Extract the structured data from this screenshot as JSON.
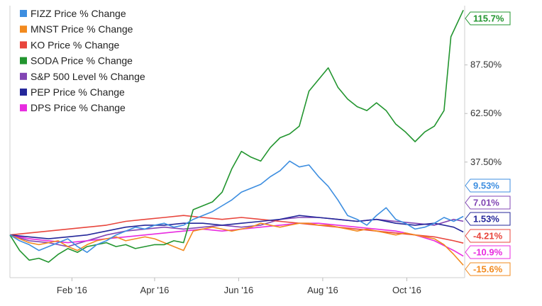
{
  "chart_data": {
    "type": "line",
    "xlim": [
      "2016-01-01",
      "2016-11-26"
    ],
    "ylim": [
      -22,
      118
    ],
    "grid": "off",
    "legend_placement": "top-left",
    "x_ticks": [
      {
        "date": "2016-02-15",
        "label": "Feb '16"
      },
      {
        "date": "2016-04-15",
        "label": "Apr '16"
      },
      {
        "date": "2016-06-15",
        "label": "Jun '16"
      },
      {
        "date": "2016-08-15",
        "label": "Aug '16"
      },
      {
        "date": "2016-10-15",
        "label": "Oct '16"
      }
    ],
    "y_ticks": [
      {
        "value": 87.5,
        "label": "87.50%"
      },
      {
        "value": 62.5,
        "label": "62.50%"
      },
      {
        "value": 37.5,
        "label": "37.50%"
      }
    ],
    "series": [
      {
        "name": "FIZZ Price % Change",
        "color": "#3d8ee0",
        "end_label": "9.53%",
        "end_value": 9.53,
        "points": [
          [
            "2016-01-01",
            0
          ],
          [
            "2016-01-08",
            -3
          ],
          [
            "2016-01-15",
            -5
          ],
          [
            "2016-01-22",
            -8
          ],
          [
            "2016-01-29",
            -6
          ],
          [
            "2016-02-05",
            -4
          ],
          [
            "2016-02-12",
            -2
          ],
          [
            "2016-02-19",
            -6
          ],
          [
            "2016-02-26",
            -9
          ],
          [
            "2016-03-04",
            -5
          ],
          [
            "2016-03-11",
            -3
          ],
          [
            "2016-03-18",
            0
          ],
          [
            "2016-03-25",
            2
          ],
          [
            "2016-04-01",
            4
          ],
          [
            "2016-04-08",
            3
          ],
          [
            "2016-04-15",
            5
          ],
          [
            "2016-04-22",
            6
          ],
          [
            "2016-04-29",
            4
          ],
          [
            "2016-05-06",
            5
          ],
          [
            "2016-05-13",
            8
          ],
          [
            "2016-05-20",
            10
          ],
          [
            "2016-05-27",
            12
          ],
          [
            "2016-06-03",
            15
          ],
          [
            "2016-06-10",
            18
          ],
          [
            "2016-06-17",
            22
          ],
          [
            "2016-06-24",
            24
          ],
          [
            "2016-07-01",
            26
          ],
          [
            "2016-07-08",
            30
          ],
          [
            "2016-07-15",
            33
          ],
          [
            "2016-07-22",
            38
          ],
          [
            "2016-07-29",
            35
          ],
          [
            "2016-08-05",
            36
          ],
          [
            "2016-08-12",
            30
          ],
          [
            "2016-08-19",
            25
          ],
          [
            "2016-08-26",
            18
          ],
          [
            "2016-09-02",
            10
          ],
          [
            "2016-09-09",
            8
          ],
          [
            "2016-09-16",
            5
          ],
          [
            "2016-09-23",
            10
          ],
          [
            "2016-09-30",
            14
          ],
          [
            "2016-10-07",
            8
          ],
          [
            "2016-10-14",
            6
          ],
          [
            "2016-10-21",
            3
          ],
          [
            "2016-10-28",
            4
          ],
          [
            "2016-11-04",
            6
          ],
          [
            "2016-11-11",
            9
          ],
          [
            "2016-11-18",
            7
          ],
          [
            "2016-11-25",
            9.53
          ]
        ]
      },
      {
        "name": "MNST Price % Change",
        "color": "#f28a1e",
        "end_label": "-15.6%",
        "end_value": -15.6,
        "points": [
          [
            "2016-01-01",
            0
          ],
          [
            "2016-01-08",
            -2
          ],
          [
            "2016-01-15",
            -4
          ],
          [
            "2016-01-22",
            -5
          ],
          [
            "2016-01-29",
            -4
          ],
          [
            "2016-02-05",
            -3
          ],
          [
            "2016-02-12",
            -6
          ],
          [
            "2016-02-19",
            -8
          ],
          [
            "2016-02-26",
            -5
          ],
          [
            "2016-03-04",
            -3
          ],
          [
            "2016-03-11",
            -2
          ],
          [
            "2016-03-18",
            -1
          ],
          [
            "2016-03-25",
            -3
          ],
          [
            "2016-04-01",
            -2
          ],
          [
            "2016-04-08",
            -1
          ],
          [
            "2016-04-15",
            -2
          ],
          [
            "2016-04-22",
            -4
          ],
          [
            "2016-04-29",
            -6
          ],
          [
            "2016-05-06",
            -8
          ],
          [
            "2016-05-13",
            2
          ],
          [
            "2016-05-20",
            3
          ],
          [
            "2016-05-27",
            4
          ],
          [
            "2016-06-03",
            3
          ],
          [
            "2016-06-10",
            2
          ],
          [
            "2016-06-17",
            3
          ],
          [
            "2016-06-24",
            4
          ],
          [
            "2016-07-01",
            6
          ],
          [
            "2016-07-08",
            5
          ],
          [
            "2016-07-15",
            4
          ],
          [
            "2016-07-22",
            5
          ],
          [
            "2016-07-29",
            6
          ],
          [
            "2016-08-05",
            6
          ],
          [
            "2016-08-12",
            5
          ],
          [
            "2016-08-19",
            5
          ],
          [
            "2016-08-26",
            4
          ],
          [
            "2016-09-02",
            3
          ],
          [
            "2016-09-09",
            2
          ],
          [
            "2016-09-16",
            3
          ],
          [
            "2016-09-23",
            2
          ],
          [
            "2016-09-30",
            1
          ],
          [
            "2016-10-07",
            0
          ],
          [
            "2016-10-14",
            1
          ],
          [
            "2016-10-21",
            0
          ],
          [
            "2016-10-28",
            -1
          ],
          [
            "2016-11-04",
            -2
          ],
          [
            "2016-11-11",
            -5
          ],
          [
            "2016-11-18",
            -10
          ],
          [
            "2016-11-25",
            -15.6
          ]
        ]
      },
      {
        "name": "KO Price % Change",
        "color": "#e8453c",
        "end_label": "-4.21%",
        "end_value": -4.21,
        "points": [
          [
            "2016-01-01",
            0
          ],
          [
            "2016-01-15",
            1
          ],
          [
            "2016-01-29",
            2
          ],
          [
            "2016-02-12",
            3
          ],
          [
            "2016-02-26",
            4
          ],
          [
            "2016-03-11",
            5
          ],
          [
            "2016-03-25",
            7
          ],
          [
            "2016-04-08",
            8
          ],
          [
            "2016-04-22",
            9
          ],
          [
            "2016-05-06",
            10
          ],
          [
            "2016-05-20",
            9
          ],
          [
            "2016-06-03",
            8
          ],
          [
            "2016-06-17",
            9
          ],
          [
            "2016-07-01",
            8
          ],
          [
            "2016-07-15",
            7
          ],
          [
            "2016-07-29",
            6
          ],
          [
            "2016-08-12",
            5
          ],
          [
            "2016-08-26",
            4
          ],
          [
            "2016-09-09",
            3
          ],
          [
            "2016-09-23",
            2
          ],
          [
            "2016-10-07",
            1
          ],
          [
            "2016-10-21",
            0
          ],
          [
            "2016-11-04",
            -1
          ],
          [
            "2016-11-18",
            -3
          ],
          [
            "2016-11-25",
            -4.21
          ]
        ]
      },
      {
        "name": "SODA Price % Change",
        "color": "#22952f",
        "end_label": "115.7%",
        "end_value": 115.7,
        "points": [
          [
            "2016-01-01",
            0
          ],
          [
            "2016-01-08",
            -8
          ],
          [
            "2016-01-15",
            -13
          ],
          [
            "2016-01-22",
            -12
          ],
          [
            "2016-01-29",
            -14
          ],
          [
            "2016-02-05",
            -10
          ],
          [
            "2016-02-12",
            -7
          ],
          [
            "2016-02-19",
            -9
          ],
          [
            "2016-02-26",
            -6
          ],
          [
            "2016-03-04",
            -5
          ],
          [
            "2016-03-11",
            -4
          ],
          [
            "2016-03-18",
            -6
          ],
          [
            "2016-03-25",
            -5
          ],
          [
            "2016-04-01",
            -7
          ],
          [
            "2016-04-08",
            -6
          ],
          [
            "2016-04-15",
            -5
          ],
          [
            "2016-04-22",
            -5
          ],
          [
            "2016-04-29",
            -3
          ],
          [
            "2016-05-06",
            -4
          ],
          [
            "2016-05-13",
            13
          ],
          [
            "2016-05-20",
            15
          ],
          [
            "2016-05-27",
            17
          ],
          [
            "2016-06-03",
            22
          ],
          [
            "2016-06-10",
            34
          ],
          [
            "2016-06-17",
            43
          ],
          [
            "2016-06-24",
            40
          ],
          [
            "2016-07-01",
            38
          ],
          [
            "2016-07-08",
            45
          ],
          [
            "2016-07-15",
            50
          ],
          [
            "2016-07-22",
            52
          ],
          [
            "2016-07-29",
            56
          ],
          [
            "2016-08-05",
            74
          ],
          [
            "2016-08-12",
            80
          ],
          [
            "2016-08-19",
            86
          ],
          [
            "2016-08-26",
            76
          ],
          [
            "2016-09-02",
            70
          ],
          [
            "2016-09-09",
            66
          ],
          [
            "2016-09-16",
            64
          ],
          [
            "2016-09-23",
            68
          ],
          [
            "2016-09-30",
            64
          ],
          [
            "2016-10-07",
            57
          ],
          [
            "2016-10-14",
            53
          ],
          [
            "2016-10-21",
            48
          ],
          [
            "2016-10-28",
            53
          ],
          [
            "2016-11-04",
            56
          ],
          [
            "2016-11-11",
            64
          ],
          [
            "2016-11-16",
            102
          ],
          [
            "2016-11-25",
            115.7
          ]
        ]
      },
      {
        "name": "S&P 500 Level % Change",
        "color": "#8246b4",
        "end_label": "7.01%",
        "end_value": 7.01,
        "points": [
          [
            "2016-01-01",
            0
          ],
          [
            "2016-01-15",
            -3
          ],
          [
            "2016-01-29",
            -4
          ],
          [
            "2016-02-12",
            -6
          ],
          [
            "2016-02-26",
            -3
          ],
          [
            "2016-03-11",
            0
          ],
          [
            "2016-03-25",
            2
          ],
          [
            "2016-04-08",
            3
          ],
          [
            "2016-04-22",
            4
          ],
          [
            "2016-05-06",
            3
          ],
          [
            "2016-05-20",
            4
          ],
          [
            "2016-06-03",
            5
          ],
          [
            "2016-06-17",
            4
          ],
          [
            "2016-07-01",
            5
          ],
          [
            "2016-07-15",
            8
          ],
          [
            "2016-07-29",
            9
          ],
          [
            "2016-08-12",
            9
          ],
          [
            "2016-08-26",
            8
          ],
          [
            "2016-09-09",
            7
          ],
          [
            "2016-09-23",
            8
          ],
          [
            "2016-10-07",
            7
          ],
          [
            "2016-10-21",
            6
          ],
          [
            "2016-11-04",
            5
          ],
          [
            "2016-11-18",
            8
          ],
          [
            "2016-11-25",
            7.01
          ]
        ]
      },
      {
        "name": "PEP Price % Change",
        "color": "#24279a",
        "end_label": "1.53%",
        "end_value": 1.53,
        "points": [
          [
            "2016-01-01",
            0
          ],
          [
            "2016-01-15",
            -1
          ],
          [
            "2016-01-29",
            -2
          ],
          [
            "2016-02-12",
            -1
          ],
          [
            "2016-02-26",
            0
          ],
          [
            "2016-03-11",
            2
          ],
          [
            "2016-03-25",
            4
          ],
          [
            "2016-04-08",
            5
          ],
          [
            "2016-04-22",
            5
          ],
          [
            "2016-05-06",
            6
          ],
          [
            "2016-05-20",
            6
          ],
          [
            "2016-06-03",
            5
          ],
          [
            "2016-06-17",
            6
          ],
          [
            "2016-07-01",
            7
          ],
          [
            "2016-07-15",
            8
          ],
          [
            "2016-07-29",
            10
          ],
          [
            "2016-08-12",
            9
          ],
          [
            "2016-08-26",
            8
          ],
          [
            "2016-09-09",
            7
          ],
          [
            "2016-09-23",
            8
          ],
          [
            "2016-10-07",
            6
          ],
          [
            "2016-10-21",
            5
          ],
          [
            "2016-11-04",
            6
          ],
          [
            "2016-11-18",
            4
          ],
          [
            "2016-11-25",
            1.53
          ]
        ]
      },
      {
        "name": "DPS Price % Change",
        "color": "#e82be0",
        "end_label": "-10.9%",
        "end_value": -10.9,
        "points": [
          [
            "2016-01-01",
            0
          ],
          [
            "2016-01-15",
            -2
          ],
          [
            "2016-01-29",
            -3
          ],
          [
            "2016-02-12",
            -4
          ],
          [
            "2016-02-26",
            -3
          ],
          [
            "2016-03-11",
            -2
          ],
          [
            "2016-03-25",
            -1
          ],
          [
            "2016-04-08",
            0
          ],
          [
            "2016-04-22",
            1
          ],
          [
            "2016-05-06",
            2
          ],
          [
            "2016-05-20",
            3
          ],
          [
            "2016-06-03",
            2
          ],
          [
            "2016-06-17",
            3
          ],
          [
            "2016-07-01",
            4
          ],
          [
            "2016-07-15",
            5
          ],
          [
            "2016-07-29",
            6
          ],
          [
            "2016-08-12",
            6
          ],
          [
            "2016-08-26",
            5
          ],
          [
            "2016-09-09",
            4
          ],
          [
            "2016-09-23",
            3
          ],
          [
            "2016-10-07",
            2
          ],
          [
            "2016-10-21",
            0
          ],
          [
            "2016-11-04",
            -3
          ],
          [
            "2016-11-18",
            -8
          ],
          [
            "2016-11-25",
            -10.9
          ]
        ]
      }
    ]
  }
}
